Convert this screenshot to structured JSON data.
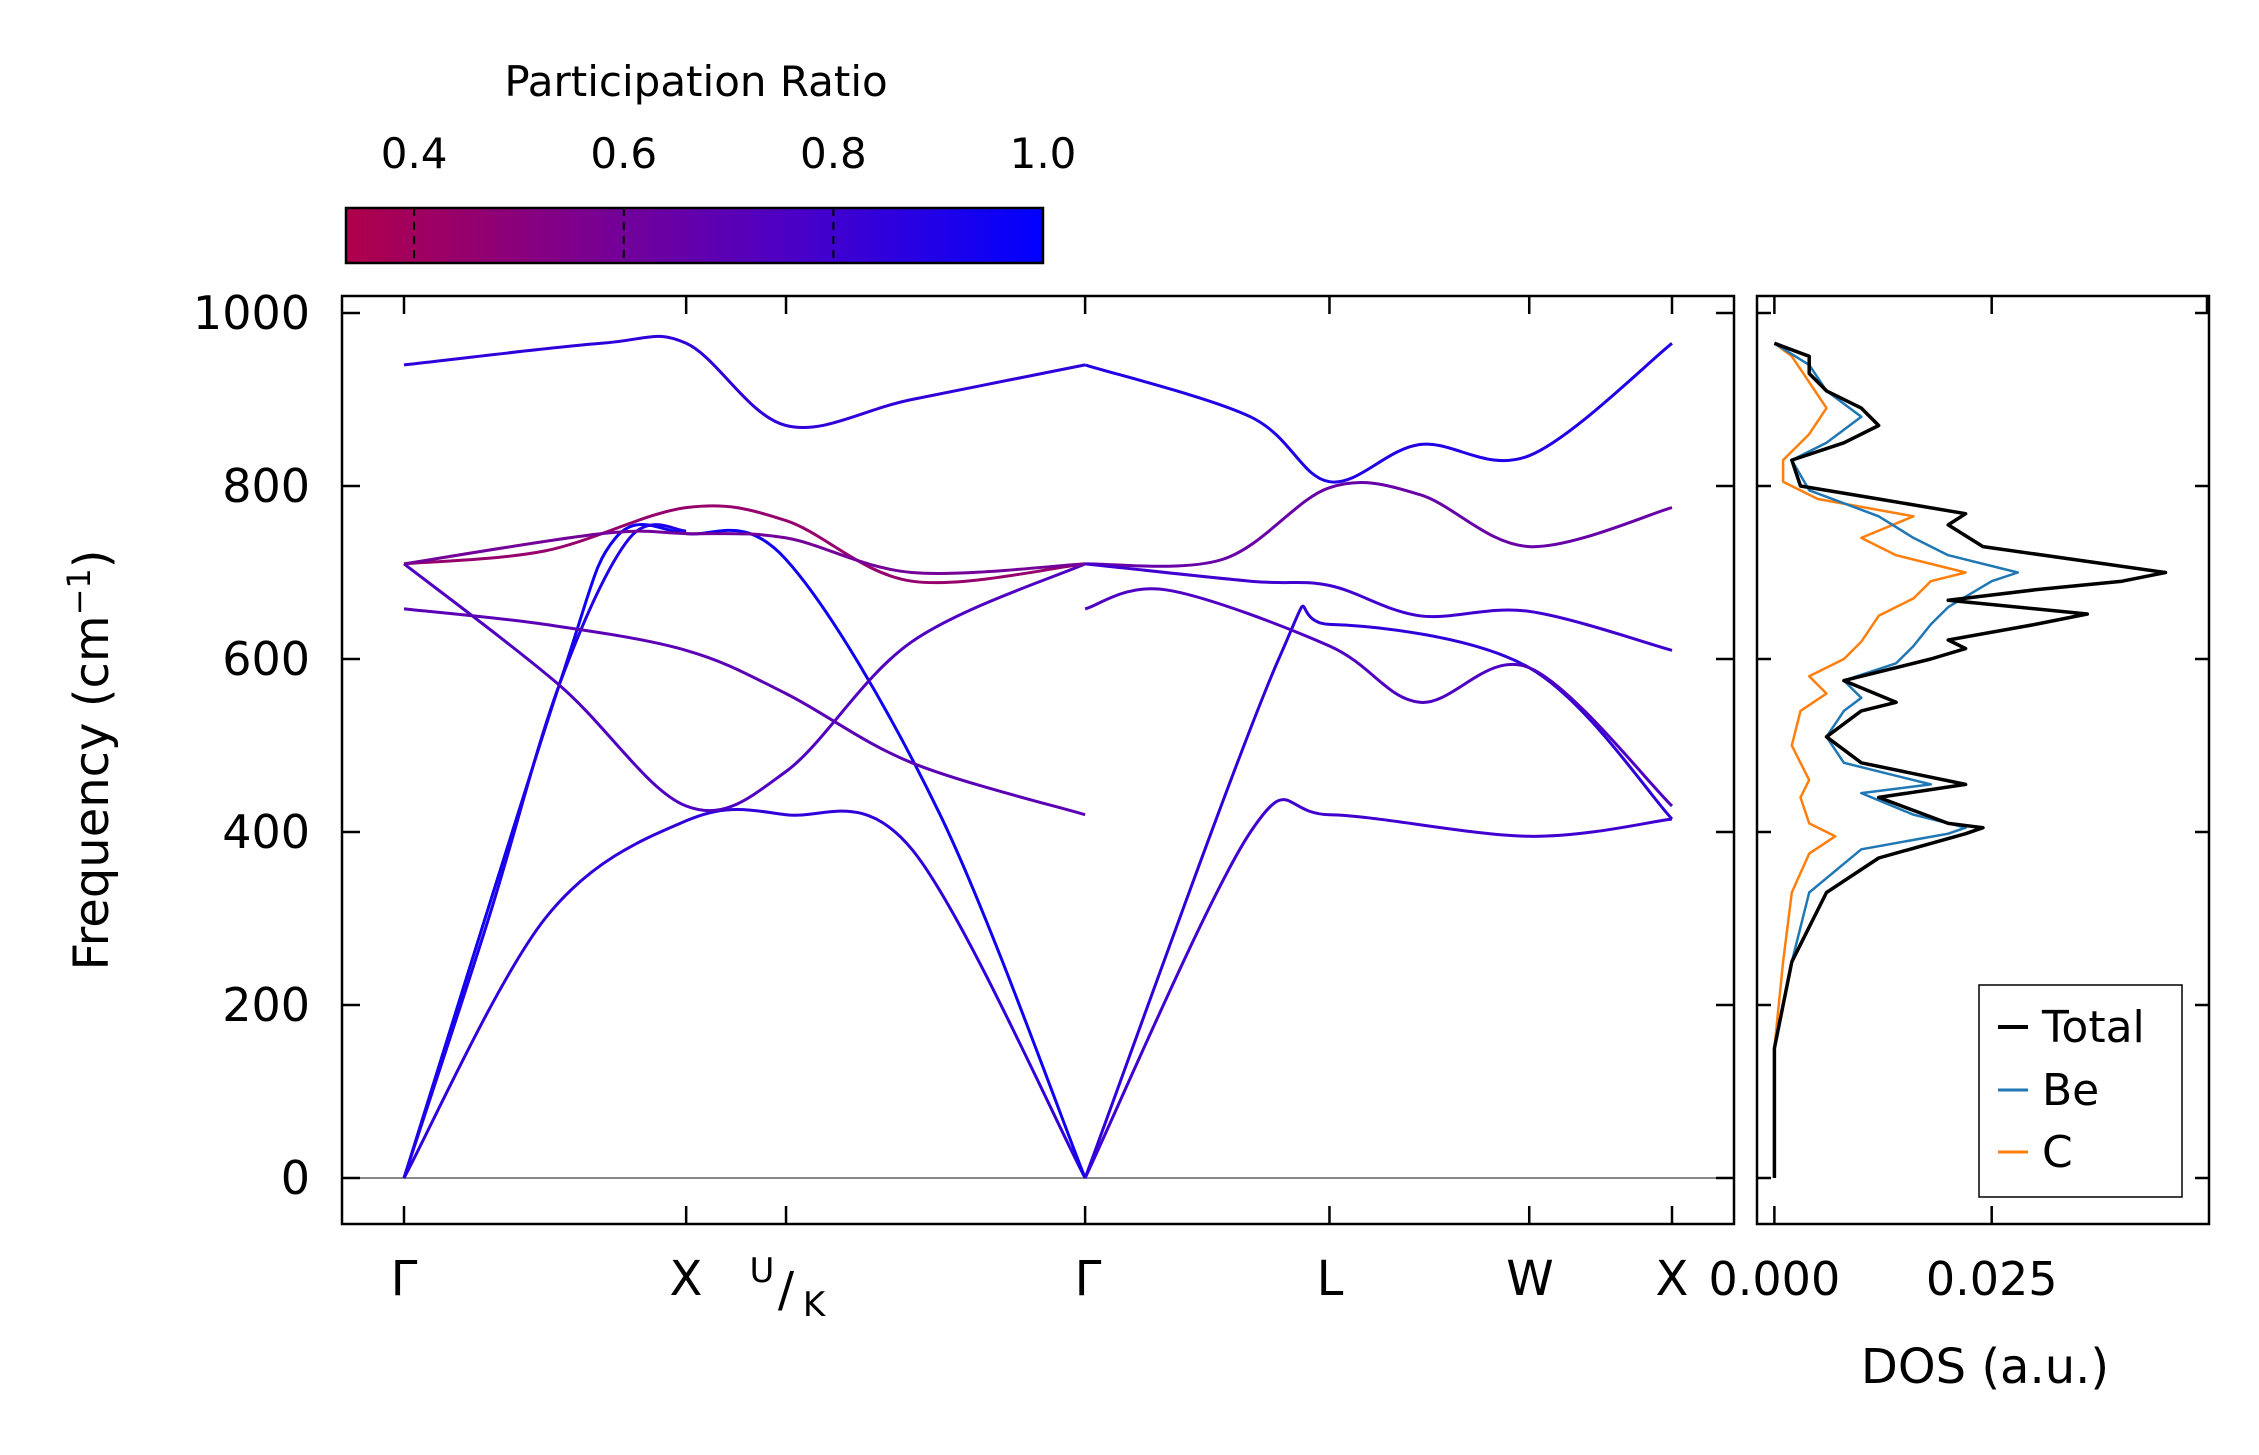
{
  "chart_data": [
    {
      "type": "line",
      "subtype": "phonon-band-structure",
      "title": "",
      "ylabel": "Frequency (cm",
      "ylabel_sup": "−1",
      "ylabel_tail": ")",
      "ylim": [
        -50,
        1020
      ],
      "yticks": [
        "0",
        "200",
        "400",
        "600",
        "800",
        "1000"
      ],
      "ytick_values": [
        0,
        200,
        400,
        600,
        800,
        1000
      ],
      "kpath": [
        "Γ",
        "X",
        "U/K",
        "Γ",
        "L",
        "W",
        "X"
      ],
      "kpath_positions": [
        0,
        1,
        1.354,
        2.414,
        3.28,
        3.988,
        4.494
      ],
      "kpath_labels": {
        "gamma": "Γ",
        "x": "X",
        "u": "U",
        "k": "K",
        "gamma2": "Γ",
        "l": "L",
        "w": "W",
        "x2": "X"
      },
      "colorbar": {
        "label": "Participation Ratio",
        "range": [
          0.335,
          1.0
        ],
        "ticks": [
          "0.4",
          "0.6",
          "0.8",
          "1.0"
        ],
        "tick_values": [
          0.4,
          0.6,
          0.8,
          1.0
        ],
        "colormap": [
          "#b0004a",
          "#7a0090",
          "#4a00c8",
          "#0000ff"
        ]
      },
      "zero_line": 0,
      "bands": [
        {
          "name": "branch-1",
          "pr": 0.85,
          "points": [
            [
              0,
              0
            ],
            [
              0.5,
              300
            ],
            [
              1,
              413
            ],
            [
              1.354,
              420
            ],
            [
              1.8,
              380
            ],
            [
              2.414,
              0
            ]
          ]
        },
        {
          "name": "branch-2",
          "pr": 0.95,
          "points": [
            [
              0,
              0
            ],
            [
              0.55,
              570
            ],
            [
              0.75,
              740
            ],
            [
              1,
              745
            ],
            [
              1.354,
              715
            ],
            [
              1.9,
              420
            ],
            [
              2.414,
              0
            ]
          ]
        },
        {
          "name": "branch-3",
          "pr": 0.9,
          "points": [
            [
              0,
              0
            ],
            [
              0.3,
              300
            ],
            [
              0.55,
              570
            ],
            [
              0.8,
              740
            ],
            [
              1,
              748
            ]
          ]
        },
        {
          "name": "branch-4",
          "pr": 0.75,
          "points": [
            [
              0,
              710
            ],
            [
              0.55,
              570
            ],
            [
              1,
              430
            ],
            [
              1.354,
              470
            ],
            [
              1.8,
              620
            ],
            [
              2.414,
              710
            ]
          ]
        },
        {
          "name": "branch-5",
          "pr": 0.7,
          "points": [
            [
              0,
              658
            ],
            [
              0.5,
              640
            ],
            [
              1,
              610
            ],
            [
              1.354,
              560
            ],
            [
              1.8,
              480
            ],
            [
              2.414,
              420
            ]
          ]
        },
        {
          "name": "branch-6",
          "pr": 0.45,
          "points": [
            [
              0,
              710
            ],
            [
              0.5,
              725
            ],
            [
              1,
              775
            ],
            [
              1.354,
              760
            ],
            [
              1.8,
              690
            ],
            [
              2.414,
              710
            ]
          ]
        },
        {
          "name": "branch-7",
          "pr": 0.85,
          "points": [
            [
              0,
              940
            ],
            [
              0.7,
              965
            ],
            [
              1,
              965
            ],
            [
              1.354,
              870
            ],
            [
              1.8,
              900
            ],
            [
              2.414,
              940
            ]
          ]
        },
        {
          "name": "branch-8",
          "pr": 0.6,
          "points": [
            [
              0,
              710
            ],
            [
              0.7,
              745
            ],
            [
              1,
              745
            ],
            [
              1.354,
              740
            ],
            [
              1.8,
              700
            ],
            [
              2.414,
              710
            ]
          ]
        },
        {
          "name": "branch-9",
          "pr": 0.8,
          "points": [
            [
              2.414,
              0
            ],
            [
              3.0,
              400
            ],
            [
              3.28,
              420
            ],
            [
              3.988,
              395
            ],
            [
              4.494,
              415
            ]
          ]
        },
        {
          "name": "branch-10",
          "pr": 0.85,
          "points": [
            [
              2.414,
              0
            ],
            [
              3.1,
              600
            ],
            [
              3.28,
              640
            ],
            [
              3.988,
              590
            ],
            [
              4.494,
              415
            ]
          ]
        },
        {
          "name": "branch-11",
          "pr": 0.75,
          "points": [
            [
              2.414,
              658
            ],
            [
              2.7,
              680
            ],
            [
              3.28,
              615
            ],
            [
              3.6,
              550
            ],
            [
              3.988,
              590
            ],
            [
              4.494,
              430
            ]
          ]
        },
        {
          "name": "branch-12",
          "pr": 0.65,
          "points": [
            [
              2.414,
              710
            ],
            [
              2.9,
              715
            ],
            [
              3.28,
              798
            ],
            [
              3.6,
              790
            ],
            [
              3.988,
              730
            ],
            [
              4.494,
              775
            ]
          ]
        },
        {
          "name": "branch-13",
          "pr": 0.9,
          "points": [
            [
              2.414,
              940
            ],
            [
              3.0,
              880
            ],
            [
              3.28,
              805
            ],
            [
              3.6,
              848
            ],
            [
              3.988,
              835
            ],
            [
              4.494,
              965
            ]
          ]
        },
        {
          "name": "branch-14",
          "pr": 0.8,
          "points": [
            [
              2.414,
              710
            ],
            [
              3.0,
              690
            ],
            [
              3.28,
              685
            ],
            [
              3.6,
              650
            ],
            [
              3.988,
              655
            ],
            [
              4.494,
              610
            ]
          ]
        }
      ]
    },
    {
      "type": "line",
      "subtype": "density-of-states",
      "xlabel": "DOS (a.u.)",
      "xticks": [
        "0.000",
        "0.025"
      ],
      "xtick_values": [
        0.0,
        0.025
      ],
      "xlim": [
        -0.002,
        0.05
      ],
      "ylim": [
        -50,
        1020
      ],
      "legend_position": "bottom-right",
      "series": [
        {
          "name": "Total",
          "color": "#000000",
          "points": [
            [
              0,
              0
            ],
            [
              0,
              150
            ],
            [
              0.002,
              250
            ],
            [
              0.006,
              330
            ],
            [
              0.012,
              370
            ],
            [
              0.022,
              398
            ],
            [
              0.024,
              405
            ],
            [
              0.02,
              410
            ],
            [
              0.012,
              440
            ],
            [
              0.022,
              455
            ],
            [
              0.01,
              480
            ],
            [
              0.006,
              510
            ],
            [
              0.01,
              540
            ],
            [
              0.014,
              550
            ],
            [
              0.008,
              575
            ],
            [
              0.018,
              600
            ],
            [
              0.022,
              612
            ],
            [
              0.02,
              622
            ],
            [
              0.03,
              640
            ],
            [
              0.036,
              652
            ],
            [
              0.02,
              668
            ],
            [
              0.03,
              680
            ],
            [
              0.04,
              690
            ],
            [
              0.045,
              700
            ],
            [
              0.038,
              710
            ],
            [
              0.024,
              730
            ],
            [
              0.02,
              755
            ],
            [
              0.022,
              768
            ],
            [
              0.012,
              785
            ],
            [
              0.003,
              800
            ],
            [
              0.002,
              830
            ],
            [
              0.008,
              850
            ],
            [
              0.012,
              870
            ],
            [
              0.01,
              890
            ],
            [
              0.006,
              910
            ],
            [
              0.004,
              930
            ],
            [
              0.004,
              950
            ],
            [
              0,
              965
            ]
          ]
        },
        {
          "name": "Be",
          "color": "#1f77b4",
          "points": [
            [
              0,
              0
            ],
            [
              0,
              150
            ],
            [
              0.002,
              250
            ],
            [
              0.004,
              330
            ],
            [
              0.01,
              380
            ],
            [
              0.02,
              398
            ],
            [
              0.022,
              405
            ],
            [
              0.016,
              420
            ],
            [
              0.01,
              445
            ],
            [
              0.018,
              455
            ],
            [
              0.008,
              480
            ],
            [
              0.006,
              510
            ],
            [
              0.008,
              540
            ],
            [
              0.01,
              555
            ],
            [
              0.008,
              575
            ],
            [
              0.014,
              595
            ],
            [
              0.016,
              615
            ],
            [
              0.018,
              640
            ],
            [
              0.02,
              660
            ],
            [
              0.025,
              690
            ],
            [
              0.028,
              700
            ],
            [
              0.02,
              720
            ],
            [
              0.016,
              740
            ],
            [
              0.012,
              765
            ],
            [
              0.004,
              795
            ],
            [
              0.002,
              830
            ],
            [
              0.006,
              850
            ],
            [
              0.01,
              880
            ],
            [
              0.006,
              910
            ],
            [
              0.004,
              940
            ],
            [
              0,
              965
            ]
          ]
        },
        {
          "name": "C",
          "color": "#ff7f0e",
          "points": [
            [
              0,
              0
            ],
            [
              0,
              150
            ],
            [
              0.001,
              250
            ],
            [
              0.002,
              330
            ],
            [
              0.004,
              375
            ],
            [
              0.007,
              395
            ],
            [
              0.004,
              410
            ],
            [
              0.003,
              440
            ],
            [
              0.004,
              460
            ],
            [
              0.002,
              500
            ],
            [
              0.003,
              540
            ],
            [
              0.006,
              560
            ],
            [
              0.004,
              580
            ],
            [
              0.008,
              600
            ],
            [
              0.01,
              620
            ],
            [
              0.012,
              650
            ],
            [
              0.016,
              670
            ],
            [
              0.018,
              690
            ],
            [
              0.022,
              700
            ],
            [
              0.014,
              720
            ],
            [
              0.01,
              740
            ],
            [
              0.016,
              765
            ],
            [
              0.005,
              785
            ],
            [
              0.001,
              805
            ],
            [
              0.001,
              830
            ],
            [
              0.004,
              860
            ],
            [
              0.006,
              890
            ],
            [
              0.004,
              920
            ],
            [
              0.002,
              950
            ],
            [
              0,
              965
            ]
          ]
        }
      ]
    }
  ]
}
